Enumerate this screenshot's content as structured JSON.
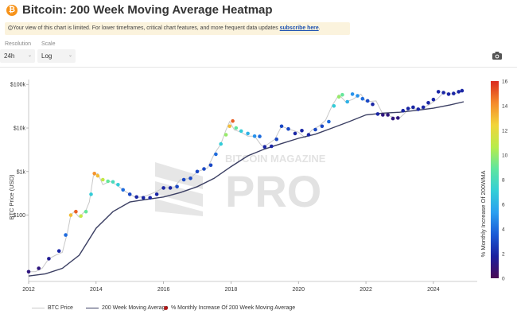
{
  "header": {
    "badge": "₿",
    "title": "Bitcoin: 200 Week Moving Average Heatmap"
  },
  "notice": {
    "text": "Your view of this chart is limited. For lower timeframes, critical chart features, and more frequent data updates",
    "link": "subscribe here",
    "end": "."
  },
  "controls": {
    "resolution_label": "Resolution",
    "resolution_value": "24h",
    "scale_label": "Scale",
    "scale_value": "Log"
  },
  "toolbar": {
    "camera_icon": "camera-icon"
  },
  "watermark": {
    "line1": "BITCOIN MAGAZINE",
    "line2": "PRO"
  },
  "colors": {
    "price_line": "#c8c8c8",
    "ma_line": "#3b3f63",
    "dot_legend": "#b01818",
    "colorscale": [
      "#4b0a55",
      "#1a1f9e",
      "#1a5ad6",
      "#2b9ff0",
      "#34cfd6",
      "#5fe6a0",
      "#b8ec4a",
      "#f2d43a",
      "#f58a2a",
      "#d92b1f"
    ]
  },
  "chart_data": {
    "type": "scatter",
    "title": "Bitcoin: 200 Week Moving Average Heatmap",
    "ylabel": "BTC Price (USD)",
    "xlabel": "",
    "yscale": "log",
    "ylim": [
      3,
      130000
    ],
    "xlim": [
      2012,
      2025.3
    ],
    "x_ticks": [
      "2012",
      "2014",
      "2016",
      "2018",
      "2020",
      "2022",
      "2024"
    ],
    "y_ticks": [
      "$100",
      "$1k",
      "$10k",
      "$100k"
    ],
    "colorbar": {
      "label": "% Monthly Increase Of 200WMA",
      "min": 0,
      "max": 16,
      "ticks": [
        "0",
        "2",
        "4",
        "6",
        "8",
        "10",
        "12",
        "14",
        "16"
      ]
    },
    "legend": [
      "BTC Price",
      "200 Week Moving Average",
      "% Monthly Increase Of 200 Week Moving Average"
    ],
    "series": [
      {
        "name": "BTC Price",
        "x": [
          2012.0,
          2012.2,
          2012.4,
          2012.6,
          2012.8,
          2013.0,
          2013.15,
          2013.25,
          2013.35,
          2013.5,
          2013.7,
          2013.8,
          2013.92,
          2014.05,
          2014.2,
          2014.4,
          2014.6,
          2014.8,
          2015.0,
          2015.2,
          2015.5,
          2015.8,
          2016.0,
          2016.3,
          2016.5,
          2016.8,
          2017.0,
          2017.3,
          2017.5,
          2017.7,
          2017.85,
          2017.96,
          2018.1,
          2018.3,
          2018.5,
          2018.7,
          2018.9,
          2019.0,
          2019.3,
          2019.5,
          2019.7,
          2020.0,
          2020.2,
          2020.4,
          2020.6,
          2020.8,
          2021.0,
          2021.2,
          2021.4,
          2021.6,
          2021.85,
          2022.0,
          2022.3,
          2022.5,
          2022.7,
          2022.9,
          2023.0,
          2023.3,
          2023.6,
          2023.9,
          2024.1,
          2024.3,
          2024.6,
          2024.8,
          2024.9
        ],
        "y": [
          5,
          5,
          6,
          10,
          12,
          14,
          40,
          100,
          120,
          90,
          130,
          200,
          800,
          900,
          500,
          600,
          500,
          380,
          300,
          250,
          280,
          350,
          430,
          420,
          650,
          700,
          1000,
          1200,
          2500,
          4300,
          9000,
          14000,
          9000,
          8000,
          6500,
          6500,
          4000,
          3800,
          5500,
          11000,
          9500,
          8000,
          6000,
          9000,
          11000,
          15000,
          33000,
          58000,
          40000,
          45000,
          60000,
          40000,
          42000,
          21000,
          19000,
          17000,
          17000,
          28000,
          27000,
          35000,
          45000,
          65000,
          60000,
          68000,
          70000
        ]
      },
      {
        "name": "200 Week Moving Average",
        "x": [
          2012.0,
          2012.5,
          2013.0,
          2013.5,
          2014.0,
          2014.5,
          2015.0,
          2015.5,
          2016.0,
          2016.5,
          2017.0,
          2017.5,
          2018.0,
          2018.5,
          2019.0,
          2019.5,
          2020.0,
          2020.5,
          2021.0,
          2021.5,
          2022.0,
          2022.5,
          2023.0,
          2023.5,
          2024.0,
          2024.5,
          2024.9
        ],
        "y": [
          4,
          4.5,
          6,
          12,
          50,
          120,
          200,
          230,
          260,
          330,
          450,
          700,
          1300,
          2300,
          3300,
          4400,
          5800,
          7200,
          10000,
          14000,
          20000,
          22000,
          23000,
          25500,
          28500,
          34000,
          40000
        ]
      },
      {
        "name": "% Monthly Increase Of 200 Week Moving Average",
        "x": [
          2012.0,
          2012.3,
          2012.6,
          2012.9,
          2013.1,
          2013.25,
          2013.4,
          2013.55,
          2013.7,
          2013.85,
          2013.95,
          2014.05,
          2014.2,
          2014.35,
          2014.5,
          2014.65,
          2014.8,
          2015.0,
          2015.2,
          2015.4,
          2015.6,
          2015.8,
          2016.0,
          2016.2,
          2016.4,
          2016.6,
          2016.8,
          2017.0,
          2017.2,
          2017.4,
          2017.55,
          2017.7,
          2017.85,
          2017.96,
          2018.05,
          2018.15,
          2018.3,
          2018.5,
          2018.7,
          2018.85,
          2019.0,
          2019.2,
          2019.35,
          2019.5,
          2019.7,
          2019.9,
          2020.1,
          2020.3,
          2020.5,
          2020.7,
          2020.9,
          2021.05,
          2021.2,
          2021.3,
          2021.45,
          2021.6,
          2021.75,
          2021.9,
          2022.05,
          2022.2,
          2022.35,
          2022.5,
          2022.65,
          2022.8,
          2022.95,
          2023.1,
          2023.25,
          2023.4,
          2023.55,
          2023.7,
          2023.85,
          2024.0,
          2024.15,
          2024.3,
          2024.45,
          2024.6,
          2024.75,
          2024.85
        ],
        "y": [
          5,
          6,
          10,
          15,
          35,
          100,
          120,
          95,
          120,
          300,
          900,
          800,
          650,
          600,
          580,
          500,
          380,
          300,
          260,
          250,
          250,
          300,
          420,
          420,
          450,
          650,
          700,
          1000,
          1150,
          1400,
          2500,
          4300,
          7000,
          11000,
          14500,
          10000,
          8500,
          7500,
          6500,
          6400,
          3700,
          3800,
          5500,
          11000,
          9500,
          7500,
          8700,
          7000,
          9200,
          11000,
          14000,
          32000,
          52000,
          58000,
          40000,
          60000,
          55000,
          47000,
          42000,
          35000,
          21000,
          20000,
          20000,
          16500,
          17000,
          25000,
          28000,
          30000,
          27000,
          30000,
          38000,
          45000,
          68000,
          65000,
          60000,
          62000,
          68000,
          72000
        ],
        "c": [
          1,
          1,
          1.5,
          2,
          4,
          13,
          15,
          11,
          9,
          7,
          14,
          13,
          11,
          9,
          8,
          7,
          4,
          3,
          2,
          2,
          2,
          2,
          2,
          2,
          3,
          3,
          3,
          3,
          3,
          3,
          4,
          7,
          10,
          13,
          15,
          9,
          7,
          6,
          5,
          4,
          2,
          2,
          3,
          3,
          3,
          2,
          2,
          2,
          3,
          3,
          4,
          7,
          10,
          9,
          6,
          5,
          5,
          4,
          3,
          2,
          2,
          1,
          1,
          1,
          1,
          2,
          2,
          2,
          2,
          2,
          2,
          2,
          2,
          2,
          2,
          2,
          2,
          2
        ]
      }
    ]
  }
}
